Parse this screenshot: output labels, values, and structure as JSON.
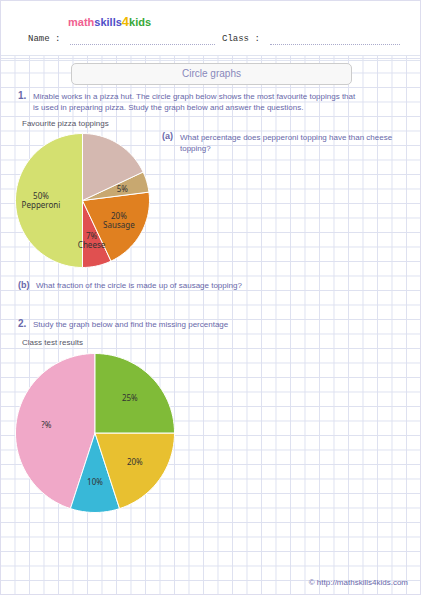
{
  "chart_data": [
    {
      "type": "pie",
      "title": "Favourite pizza toppings",
      "categories": [
        "Pepperoni",
        "Cheese",
        "Sausage",
        null,
        null
      ],
      "values": [
        50,
        7,
        20,
        5,
        18
      ],
      "value_labels": [
        "50%",
        "7%",
        "20%",
        "5%",
        null
      ],
      "colors": [
        "#d4e070",
        "#e05050",
        "#e08020",
        "#c8a870",
        "#d4b8b0"
      ],
      "data_labels": true,
      "annotations": [
        "math",
        "skills",
        "4",
        "kids",
        "Name :",
        "Class :",
        "Circle graphs",
        "1.",
        "Mirable works in a pizza hut. The circle graph below shows the most favourite toppings that",
        "is used in preparing pizza. Study the graph below and answer the questions.",
        "(a)",
        "What percentage does pepperoni topping have than cheese topping?",
        "(b)",
        "What fraction of the circle is made up of sausage topping?"
      ]
    },
    {
      "type": "pie",
      "title": "Class test results",
      "values": [
        45,
        10,
        20,
        25
      ],
      "value_labels": [
        "?%",
        "10%",
        "20%",
        "25%"
      ],
      "colors": [
        "#f0a8c8",
        "#38b8d8",
        "#e8c030",
        "#80bb38"
      ],
      "data_labels": true,
      "annotations": [
        "2.",
        "Study the graph below and find the missing percentage",
        "© http://mathskills4kids.com"
      ]
    }
  ]
}
